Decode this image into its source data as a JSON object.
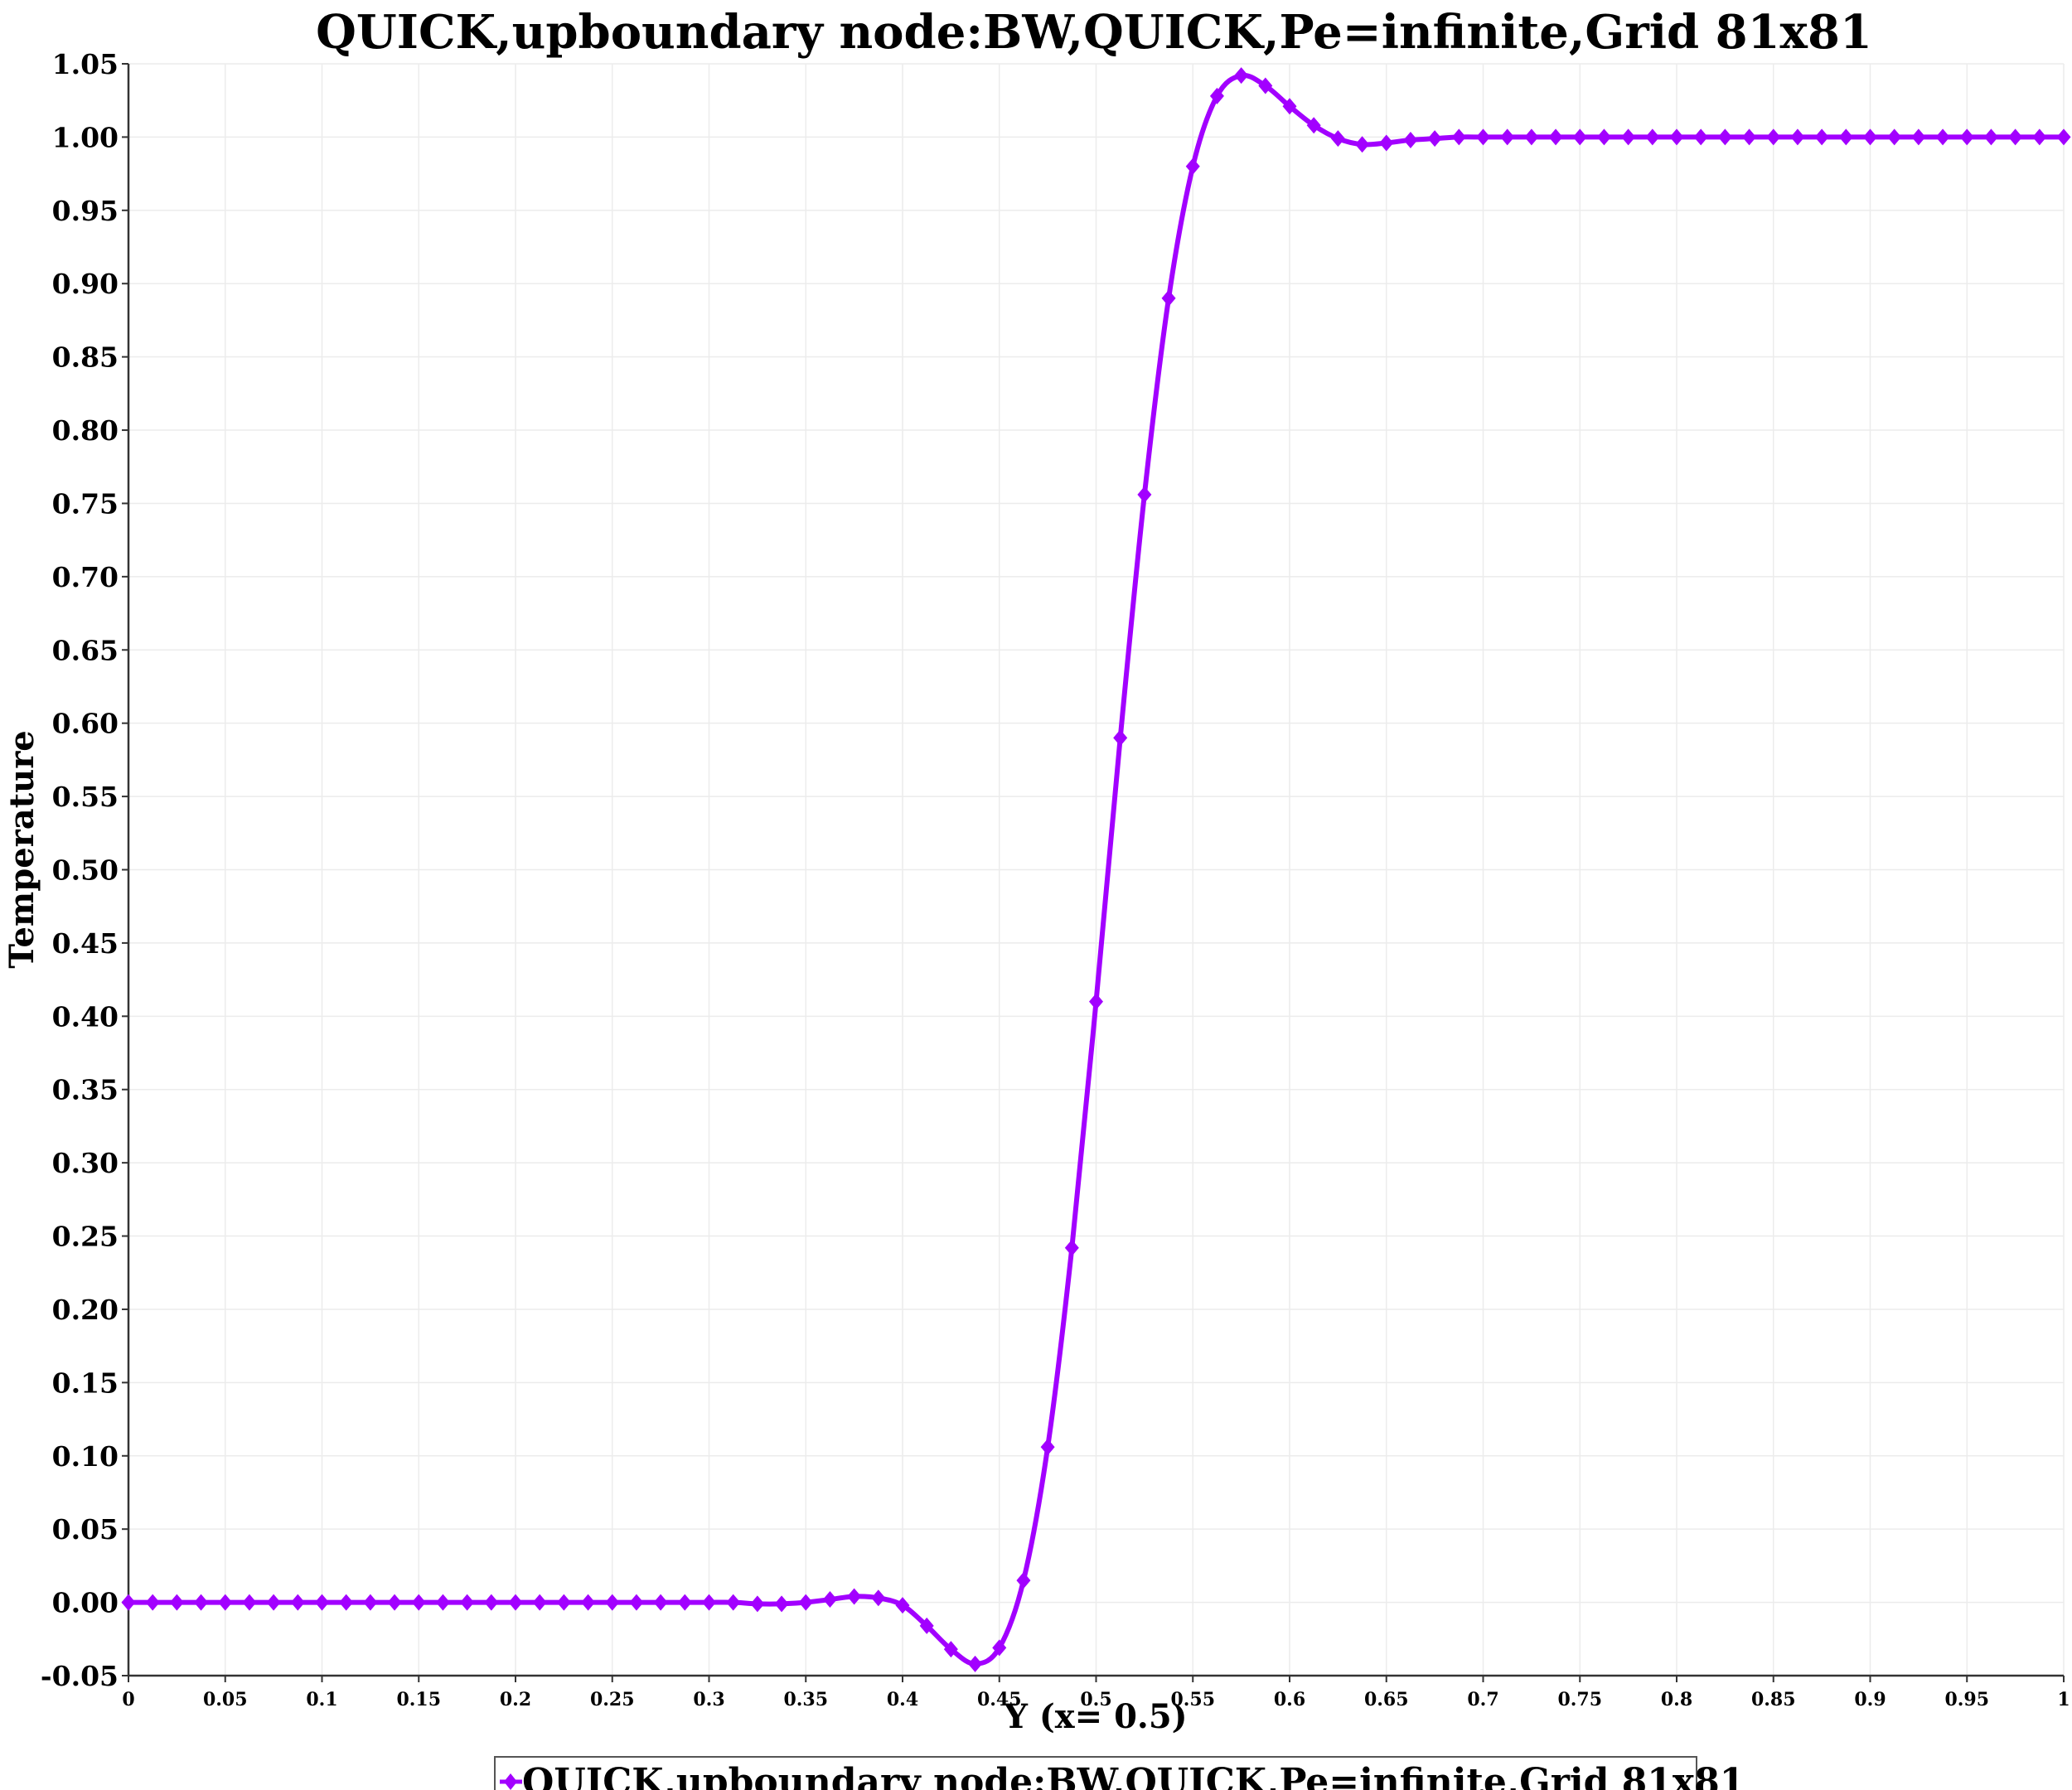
{
  "chart_data": {
    "type": "line",
    "title": "QUICK,upboundary node:BW,QUICK,Pe=infinite,Grid 81x81",
    "xlabel": "Y (x= 0.5)",
    "ylabel": "Temperature",
    "xlim": [
      0,
      1
    ],
    "ylim": [
      -0.05,
      1.05
    ],
    "grid": true,
    "legend_position": "bottom-center",
    "x_ticks": [
      "0",
      "0.05",
      "0.1",
      "0.15",
      "0.2",
      "0.25",
      "0.3",
      "0.35",
      "0.4",
      "0.45",
      "0.5",
      "0.55",
      "0.6",
      "0.65",
      "0.7",
      "0.75",
      "0.8",
      "0.85",
      "0.9",
      "0.95",
      "1"
    ],
    "y_ticks": [
      "-0.05",
      "0.00",
      "0.05",
      "0.10",
      "0.15",
      "0.20",
      "0.25",
      "0.30",
      "0.35",
      "0.40",
      "0.45",
      "0.50",
      "0.55",
      "0.60",
      "0.65",
      "0.70",
      "0.75",
      "0.80",
      "0.85",
      "0.90",
      "0.95",
      "1.00",
      "1.05"
    ],
    "series": [
      {
        "name": "QUICK,upboundary node:BW,QUICK,Pe=infinite,Grid 81x81",
        "color": "#a200ff",
        "marker": "diamond",
        "x": [
          0,
          0.0125,
          0.025,
          0.0375,
          0.05,
          0.0625,
          0.075,
          0.0875,
          0.1,
          0.1125,
          0.125,
          0.1375,
          0.15,
          0.1625,
          0.175,
          0.1875,
          0.2,
          0.2125,
          0.225,
          0.2375,
          0.25,
          0.2625,
          0.275,
          0.2875,
          0.3,
          0.3125,
          0.325,
          0.3375,
          0.35,
          0.3625,
          0.375,
          0.3875,
          0.4,
          0.4125,
          0.425,
          0.4375,
          0.45,
          0.4625,
          0.475,
          0.4875,
          0.5,
          0.5125,
          0.525,
          0.5375,
          0.55,
          0.5625,
          0.575,
          0.5875,
          0.6,
          0.6125,
          0.625,
          0.6375,
          0.65,
          0.6625,
          0.675,
          0.6875,
          0.7,
          0.7125,
          0.725,
          0.7375,
          0.75,
          0.7625,
          0.775,
          0.7875,
          0.8,
          0.8125,
          0.825,
          0.8375,
          0.85,
          0.8625,
          0.875,
          0.8875,
          0.9,
          0.9125,
          0.925,
          0.9375,
          0.95,
          0.9625,
          0.975,
          0.9875,
          1
        ],
        "y": [
          0,
          0,
          0,
          0,
          0,
          0,
          0,
          0,
          0,
          0,
          0,
          0,
          0,
          0,
          0,
          0,
          0,
          0,
          0,
          0,
          0,
          0,
          0,
          0,
          0,
          0,
          -0.001,
          -0.001,
          0,
          0.002,
          0.004,
          0.003,
          -0.002,
          -0.016,
          -0.032,
          -0.042,
          -0.031,
          0.015,
          0.106,
          0.242,
          0.41,
          0.59,
          0.756,
          0.89,
          0.98,
          1.028,
          1.042,
          1.035,
          1.021,
          1.008,
          0.999,
          0.995,
          0.996,
          0.998,
          0.999,
          1,
          1,
          1,
          1,
          1,
          1,
          1,
          1,
          1,
          1,
          1,
          1,
          1,
          1,
          1,
          1,
          1,
          1,
          1,
          1,
          1,
          1,
          1,
          1,
          1,
          1
        ]
      }
    ]
  }
}
